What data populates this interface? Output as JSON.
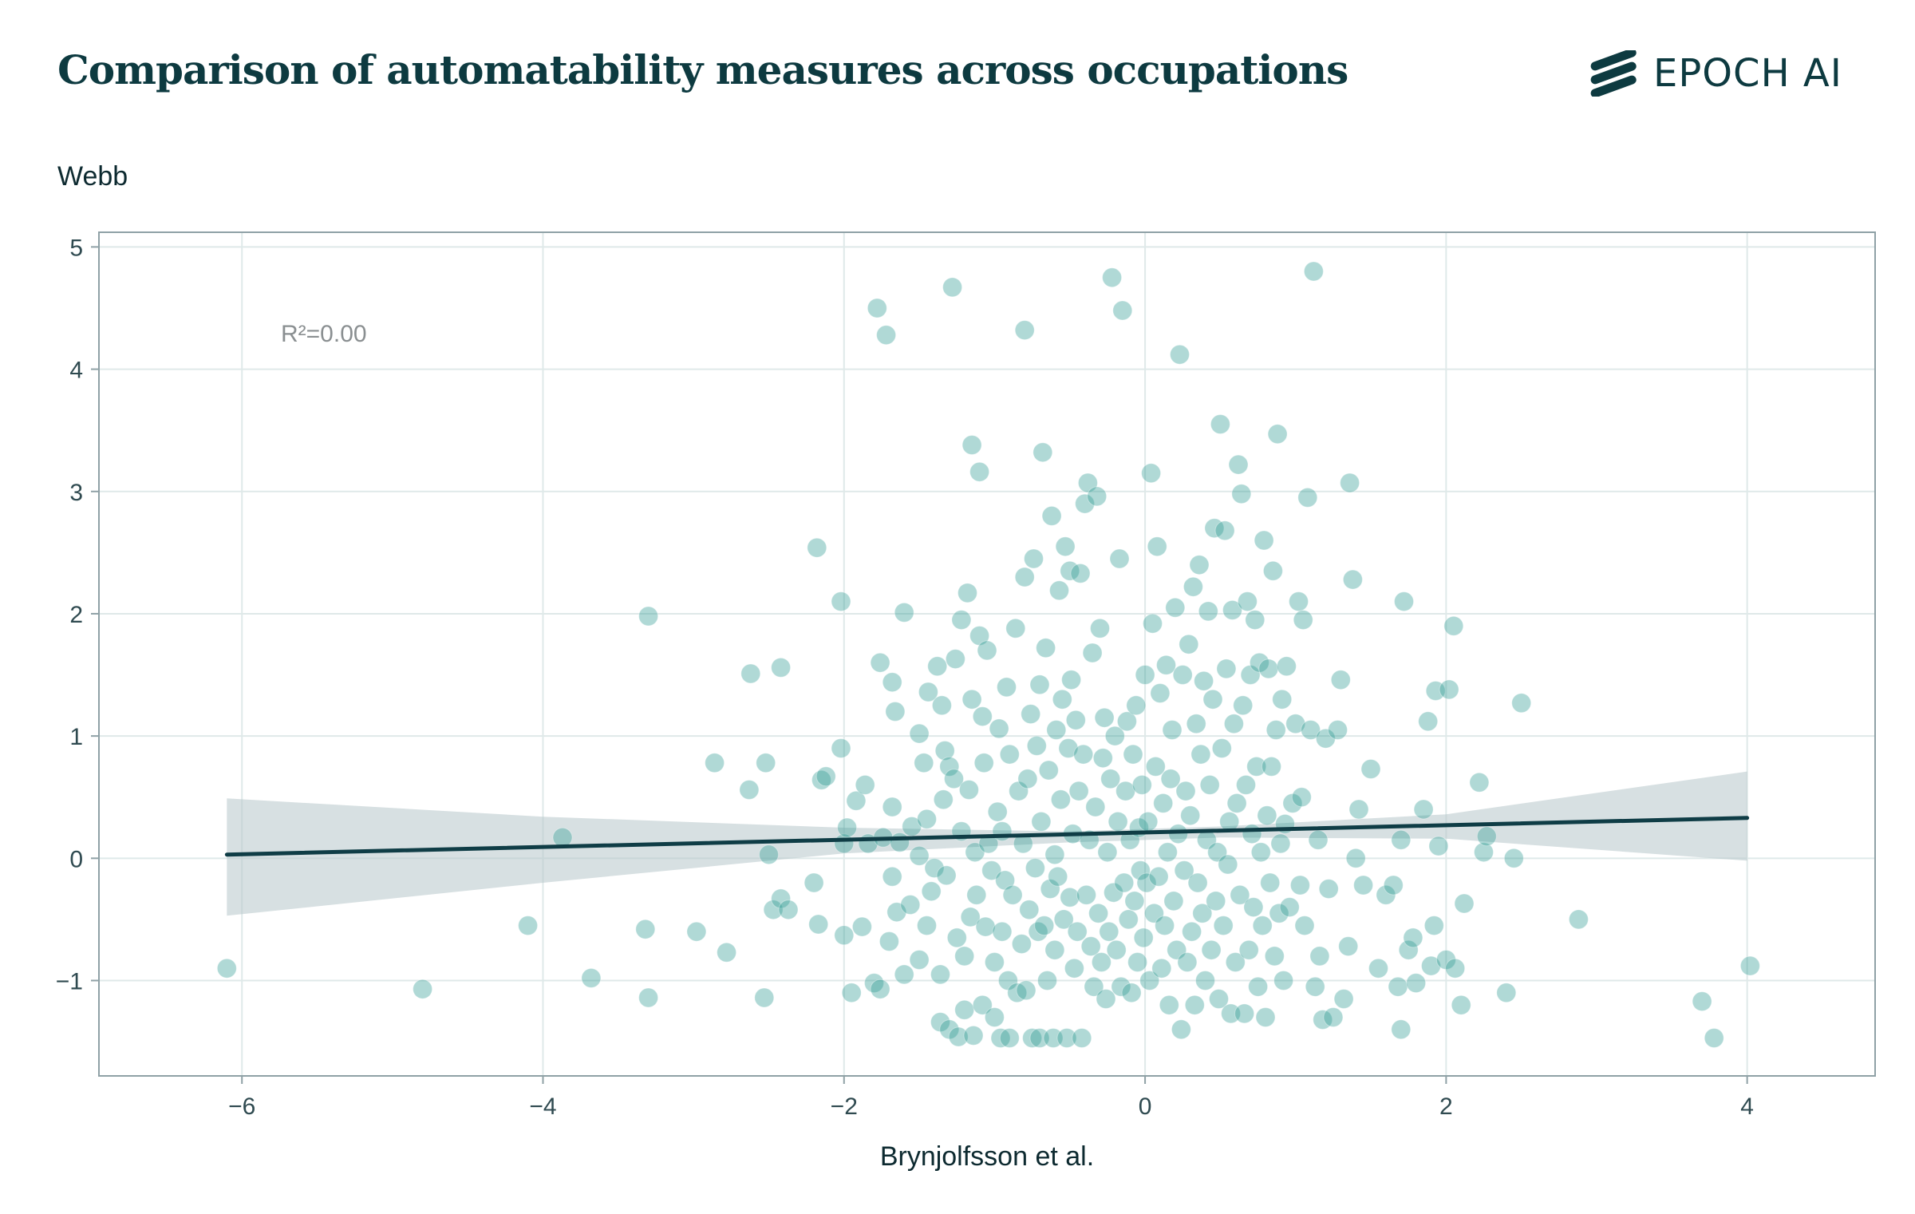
{
  "header": {
    "title": "Comparison of automatability measures across occupations",
    "logo_text": "EPOCH AI",
    "logo_icon": "epoch-stripes-icon"
  },
  "chart_data": {
    "type": "scatter",
    "title": "Comparison of automatability measures across occupations",
    "xlabel": "Brynjolfsson et al.",
    "ylabel": "Webb",
    "xlim": [
      -6.95,
      4.85
    ],
    "ylim": [
      -1.78,
      5.12
    ],
    "xticks": [
      -6,
      -4,
      -2,
      0,
      2,
      4
    ],
    "yticks": [
      5,
      4,
      3,
      2,
      1,
      0,
      -1
    ],
    "xtick_labels": [
      "−6",
      "−4",
      "−2",
      "0",
      "2",
      "4"
    ],
    "ytick_labels": [
      "5",
      "4",
      "3",
      "2",
      "1",
      "0",
      "−1"
    ],
    "grid": true,
    "annotation": "R²=0.00",
    "point_color": "#2f9a93",
    "line_color": "#0f3d46",
    "band_color": "#b7c7cb",
    "regression": {
      "x0": -6.1,
      "y0": 0.03,
      "x1": 4.0,
      "y1": 0.33
    },
    "confidence_band": {
      "x": [
        -6.1,
        -4,
        -2,
        -0.5,
        0.5,
        2,
        4.0
      ],
      "lower": [
        -0.47,
        -0.2,
        0.04,
        0.13,
        0.17,
        0.16,
        -0.02
      ],
      "upper": [
        0.49,
        0.34,
        0.25,
        0.22,
        0.26,
        0.36,
        0.71
      ]
    },
    "points": [
      [
        -6.1,
        -0.9
      ],
      [
        -4.8,
        -1.07
      ],
      [
        -4.1,
        -0.55
      ],
      [
        -3.87,
        0.17
      ],
      [
        -3.68,
        -0.98
      ],
      [
        -3.3,
        1.98
      ],
      [
        -3.32,
        -0.58
      ],
      [
        -3.3,
        -1.14
      ],
      [
        -2.98,
        -0.6
      ],
      [
        -2.86,
        0.78
      ],
      [
        -2.78,
        -0.77
      ],
      [
        -2.62,
        1.51
      ],
      [
        -2.63,
        0.56
      ],
      [
        -2.52,
        0.78
      ],
      [
        -2.53,
        -1.14
      ],
      [
        -2.5,
        0.03
      ],
      [
        -2.47,
        -0.42
      ],
      [
        -2.42,
        -0.33
      ],
      [
        -2.42,
        1.56
      ],
      [
        -2.37,
        -0.42
      ],
      [
        -2.2,
        -0.2
      ],
      [
        -2.18,
        2.54
      ],
      [
        -2.17,
        -0.54
      ],
      [
        -2.15,
        0.64
      ],
      [
        -2.12,
        0.67
      ],
      [
        -2.02,
        2.1
      ],
      [
        -2.02,
        0.9
      ],
      [
        -2.0,
        -0.63
      ],
      [
        -2.0,
        0.12
      ],
      [
        -1.98,
        0.25
      ],
      [
        -1.95,
        -1.1
      ],
      [
        -1.92,
        0.47
      ],
      [
        -1.88,
        -0.56
      ],
      [
        -1.86,
        0.6
      ],
      [
        -1.84,
        0.12
      ],
      [
        -1.8,
        -1.02
      ],
      [
        -1.78,
        4.5
      ],
      [
        -1.76,
        -1.07
      ],
      [
        -1.76,
        1.6
      ],
      [
        -1.74,
        0.17
      ],
      [
        -1.72,
        4.28
      ],
      [
        -1.7,
        -0.68
      ],
      [
        -1.68,
        1.44
      ],
      [
        -1.68,
        0.42
      ],
      [
        -1.68,
        -0.15
      ],
      [
        -1.66,
        1.2
      ],
      [
        -1.65,
        -0.44
      ],
      [
        -1.63,
        0.13
      ],
      [
        -1.6,
        2.01
      ],
      [
        -1.6,
        -0.95
      ],
      [
        -1.56,
        -0.38
      ],
      [
        -1.55,
        0.26
      ],
      [
        -1.5,
        1.02
      ],
      [
        -1.5,
        -0.83
      ],
      [
        -1.5,
        0.02
      ],
      [
        -1.47,
        0.78
      ],
      [
        -1.45,
        -0.55
      ],
      [
        -1.45,
        0.32
      ],
      [
        -1.44,
        1.36
      ],
      [
        -1.42,
        -0.27
      ],
      [
        -1.4,
        -0.08
      ],
      [
        -1.38,
        1.57
      ],
      [
        -1.36,
        -0.95
      ],
      [
        -1.36,
        -1.34
      ],
      [
        -1.35,
        1.25
      ],
      [
        -1.34,
        0.48
      ],
      [
        -1.33,
        0.88
      ],
      [
        -1.32,
        -0.14
      ],
      [
        -1.3,
        -1.4
      ],
      [
        -1.3,
        0.75
      ],
      [
        -1.28,
        4.67
      ],
      [
        -1.27,
        0.65
      ],
      [
        -1.26,
        1.63
      ],
      [
        -1.25,
        -0.65
      ],
      [
        -1.24,
        -1.46
      ],
      [
        -1.22,
        0.22
      ],
      [
        -1.22,
        1.95
      ],
      [
        -1.2,
        -1.24
      ],
      [
        -1.2,
        -0.8
      ],
      [
        -1.18,
        2.17
      ],
      [
        -1.17,
        0.56
      ],
      [
        -1.16,
        -0.48
      ],
      [
        -1.15,
        3.38
      ],
      [
        -1.15,
        1.3
      ],
      [
        -1.14,
        -1.45
      ],
      [
        -1.13,
        0.05
      ],
      [
        -1.12,
        -0.3
      ],
      [
        -1.1,
        1.82
      ],
      [
        -1.1,
        3.16
      ],
      [
        -1.08,
        -1.2
      ],
      [
        -1.08,
        1.16
      ],
      [
        -1.07,
        0.78
      ],
      [
        -1.06,
        -0.56
      ],
      [
        -1.05,
        1.7
      ],
      [
        -1.04,
        0.12
      ],
      [
        -1.02,
        -0.1
      ],
      [
        -1.0,
        -1.3
      ],
      [
        -1.0,
        -0.85
      ],
      [
        -0.98,
        0.38
      ],
      [
        -0.97,
        1.06
      ],
      [
        -0.96,
        -1.47
      ],
      [
        -0.95,
        -0.6
      ],
      [
        -0.95,
        0.22
      ],
      [
        -0.93,
        -0.18
      ],
      [
        -0.92,
        1.4
      ],
      [
        -0.91,
        -1.0
      ],
      [
        -0.9,
        0.85
      ],
      [
        -0.9,
        -1.47
      ],
      [
        -0.88,
        -0.3
      ],
      [
        -0.86,
        1.88
      ],
      [
        -0.85,
        -1.1
      ],
      [
        -0.84,
        0.55
      ],
      [
        -0.82,
        -0.7
      ],
      [
        -0.81,
        0.12
      ],
      [
        -0.8,
        4.32
      ],
      [
        -0.8,
        2.3
      ],
      [
        -0.79,
        -1.08
      ],
      [
        -0.78,
        0.65
      ],
      [
        -0.77,
        -0.42
      ],
      [
        -0.76,
        1.18
      ],
      [
        -0.75,
        -1.47
      ],
      [
        -0.74,
        2.45
      ],
      [
        -0.73,
        -0.08
      ],
      [
        -0.72,
        0.92
      ],
      [
        -0.71,
        -0.6
      ],
      [
        -0.7,
        -1.47
      ],
      [
        -0.7,
        1.42
      ],
      [
        -0.69,
        0.3
      ],
      [
        -0.68,
        3.32
      ],
      [
        -0.67,
        -0.55
      ],
      [
        -0.66,
        1.72
      ],
      [
        -0.65,
        -1.0
      ],
      [
        -0.64,
        0.72
      ],
      [
        -0.63,
        -0.25
      ],
      [
        -0.62,
        2.8
      ],
      [
        -0.61,
        -1.47
      ],
      [
        -0.6,
        0.03
      ],
      [
        -0.6,
        -0.75
      ],
      [
        -0.59,
        1.05
      ],
      [
        -0.58,
        -0.15
      ],
      [
        -0.57,
        2.19
      ],
      [
        -0.56,
        0.48
      ],
      [
        -0.55,
        1.3
      ],
      [
        -0.54,
        -0.5
      ],
      [
        -0.53,
        2.55
      ],
      [
        -0.52,
        -1.47
      ],
      [
        -0.51,
        0.9
      ],
      [
        -0.5,
        -0.32
      ],
      [
        -0.5,
        2.35
      ],
      [
        -0.49,
        1.46
      ],
      [
        -0.48,
        0.2
      ],
      [
        -0.47,
        -0.9
      ],
      [
        -0.46,
        1.13
      ],
      [
        -0.45,
        -0.6
      ],
      [
        -0.44,
        0.55
      ],
      [
        -0.43,
        2.33
      ],
      [
        -0.42,
        -1.47
      ],
      [
        -0.41,
        0.85
      ],
      [
        -0.4,
        2.9
      ],
      [
        -0.39,
        -0.3
      ],
      [
        -0.38,
        3.07
      ],
      [
        -0.37,
        0.15
      ],
      [
        -0.36,
        -0.72
      ],
      [
        -0.35,
        1.68
      ],
      [
        -0.34,
        -1.05
      ],
      [
        -0.33,
        0.42
      ],
      [
        -0.32,
        2.96
      ],
      [
        -0.31,
        -0.45
      ],
      [
        -0.3,
        1.88
      ],
      [
        -0.29,
        -0.85
      ],
      [
        -0.28,
        0.82
      ],
      [
        -0.27,
        1.15
      ],
      [
        -0.26,
        -1.15
      ],
      [
        -0.25,
        0.05
      ],
      [
        -0.24,
        -0.6
      ],
      [
        -0.23,
        0.65
      ],
      [
        -0.22,
        4.75
      ],
      [
        -0.21,
        -0.28
      ],
      [
        -0.2,
        1.0
      ],
      [
        -0.19,
        -0.75
      ],
      [
        -0.18,
        0.3
      ],
      [
        -0.17,
        2.45
      ],
      [
        -0.16,
        -1.05
      ],
      [
        -0.15,
        4.48
      ],
      [
        -0.14,
        -0.2
      ],
      [
        -0.13,
        0.55
      ],
      [
        -0.12,
        1.12
      ],
      [
        -0.11,
        -0.5
      ],
      [
        -0.1,
        0.15
      ],
      [
        -0.09,
        -1.1
      ],
      [
        -0.08,
        0.85
      ],
      [
        -0.07,
        -0.35
      ],
      [
        -0.06,
        1.25
      ],
      [
        -0.05,
        -0.85
      ],
      [
        -0.04,
        0.25
      ],
      [
        -0.03,
        -0.1
      ],
      [
        -0.02,
        0.6
      ],
      [
        -0.01,
        -0.65
      ],
      [
        0.0,
        1.5
      ],
      [
        0.01,
        -0.2
      ],
      [
        0.02,
        0.3
      ],
      [
        0.03,
        -1.0
      ],
      [
        0.04,
        3.15
      ],
      [
        0.05,
        1.92
      ],
      [
        0.06,
        -0.45
      ],
      [
        0.07,
        0.75
      ],
      [
        0.08,
        2.55
      ],
      [
        0.09,
        -0.15
      ],
      [
        0.1,
        1.35
      ],
      [
        0.11,
        -0.9
      ],
      [
        0.12,
        0.45
      ],
      [
        0.13,
        -0.55
      ],
      [
        0.14,
        1.58
      ],
      [
        0.15,
        0.05
      ],
      [
        0.16,
        -1.2
      ],
      [
        0.17,
        0.65
      ],
      [
        0.18,
        1.05
      ],
      [
        0.19,
        -0.35
      ],
      [
        0.2,
        2.05
      ],
      [
        0.21,
        -0.75
      ],
      [
        0.22,
        0.2
      ],
      [
        0.23,
        4.12
      ],
      [
        0.24,
        -1.4
      ],
      [
        0.25,
        1.5
      ],
      [
        0.26,
        -0.1
      ],
      [
        0.27,
        0.55
      ],
      [
        0.28,
        -0.85
      ],
      [
        0.29,
        1.75
      ],
      [
        0.3,
        0.35
      ],
      [
        0.31,
        -0.6
      ],
      [
        0.32,
        2.22
      ],
      [
        0.33,
        -1.2
      ],
      [
        0.34,
        1.1
      ],
      [
        0.35,
        -0.2
      ],
      [
        0.36,
        2.4
      ],
      [
        0.37,
        0.85
      ],
      [
        0.38,
        -0.45
      ],
      [
        0.39,
        1.45
      ],
      [
        0.4,
        -1.0
      ],
      [
        0.41,
        0.15
      ],
      [
        0.42,
        2.02
      ],
      [
        0.43,
        0.6
      ],
      [
        0.44,
        -0.75
      ],
      [
        0.45,
        1.3
      ],
      [
        0.46,
        2.7
      ],
      [
        0.47,
        -0.35
      ],
      [
        0.48,
        0.05
      ],
      [
        0.49,
        -1.15
      ],
      [
        0.5,
        3.55
      ],
      [
        0.51,
        0.9
      ],
      [
        0.52,
        -0.55
      ],
      [
        0.53,
        2.68
      ],
      [
        0.54,
        1.55
      ],
      [
        0.55,
        -0.05
      ],
      [
        0.56,
        0.3
      ],
      [
        0.57,
        -1.27
      ],
      [
        0.58,
        2.03
      ],
      [
        0.59,
        1.1
      ],
      [
        0.6,
        -0.85
      ],
      [
        0.61,
        0.45
      ],
      [
        0.62,
        3.22
      ],
      [
        0.63,
        -0.3
      ],
      [
        0.64,
        2.98
      ],
      [
        0.65,
        1.25
      ],
      [
        0.66,
        -1.27
      ],
      [
        0.67,
        0.6
      ],
      [
        0.68,
        2.1
      ],
      [
        0.69,
        -0.75
      ],
      [
        0.7,
        1.5
      ],
      [
        0.71,
        0.2
      ],
      [
        0.72,
        -0.4
      ],
      [
        0.73,
        1.95
      ],
      [
        0.74,
        0.75
      ],
      [
        0.75,
        -1.05
      ],
      [
        0.76,
        1.6
      ],
      [
        0.77,
        0.05
      ],
      [
        0.78,
        -0.55
      ],
      [
        0.79,
        2.6
      ],
      [
        0.8,
        -1.3
      ],
      [
        0.81,
        0.35
      ],
      [
        0.82,
        1.55
      ],
      [
        0.83,
        -0.2
      ],
      [
        0.84,
        0.75
      ],
      [
        0.85,
        2.35
      ],
      [
        0.86,
        -0.8
      ],
      [
        0.87,
        1.05
      ],
      [
        0.88,
        3.47
      ],
      [
        0.89,
        -0.45
      ],
      [
        0.9,
        0.12
      ],
      [
        0.91,
        1.3
      ],
      [
        0.92,
        -1.0
      ],
      [
        0.93,
        0.28
      ],
      [
        0.94,
        1.57
      ],
      [
        0.96,
        -0.4
      ],
      [
        0.98,
        0.45
      ],
      [
        1.0,
        1.1
      ],
      [
        1.02,
        2.1
      ],
      [
        1.03,
        -0.22
      ],
      [
        1.04,
        0.5
      ],
      [
        1.05,
        1.95
      ],
      [
        1.06,
        -0.55
      ],
      [
        1.08,
        2.95
      ],
      [
        1.1,
        1.05
      ],
      [
        1.12,
        4.8
      ],
      [
        1.13,
        -1.05
      ],
      [
        1.15,
        0.15
      ],
      [
        1.16,
        -0.8
      ],
      [
        1.18,
        -1.32
      ],
      [
        1.2,
        0.98
      ],
      [
        1.22,
        -0.25
      ],
      [
        1.25,
        -1.3
      ],
      [
        1.28,
        1.05
      ],
      [
        1.3,
        1.46
      ],
      [
        1.32,
        -1.15
      ],
      [
        1.35,
        -0.72
      ],
      [
        1.36,
        3.07
      ],
      [
        1.38,
        2.28
      ],
      [
        1.4,
        0.0
      ],
      [
        1.42,
        0.4
      ],
      [
        1.45,
        -0.22
      ],
      [
        1.5,
        0.73
      ],
      [
        1.55,
        -0.9
      ],
      [
        1.6,
        -0.3
      ],
      [
        1.65,
        -0.22
      ],
      [
        1.68,
        -1.05
      ],
      [
        1.7,
        0.15
      ],
      [
        1.7,
        -1.4
      ],
      [
        1.72,
        2.1
      ],
      [
        1.75,
        -0.75
      ],
      [
        1.78,
        -0.65
      ],
      [
        1.8,
        -1.02
      ],
      [
        1.85,
        0.4
      ],
      [
        1.88,
        1.12
      ],
      [
        1.9,
        -0.88
      ],
      [
        1.92,
        -0.55
      ],
      [
        1.93,
        1.37
      ],
      [
        1.95,
        0.1
      ],
      [
        2.0,
        -0.83
      ],
      [
        2.02,
        1.38
      ],
      [
        2.05,
        1.9
      ],
      [
        2.06,
        -0.9
      ],
      [
        2.1,
        -1.2
      ],
      [
        2.12,
        -0.37
      ],
      [
        2.22,
        0.62
      ],
      [
        2.25,
        0.05
      ],
      [
        2.27,
        0.18
      ],
      [
        2.4,
        -1.1
      ],
      [
        2.45,
        0.0
      ],
      [
        2.5,
        1.27
      ],
      [
        2.88,
        -0.5
      ],
      [
        3.7,
        -1.17
      ],
      [
        3.78,
        -1.47
      ],
      [
        4.02,
        -0.88
      ]
    ]
  }
}
